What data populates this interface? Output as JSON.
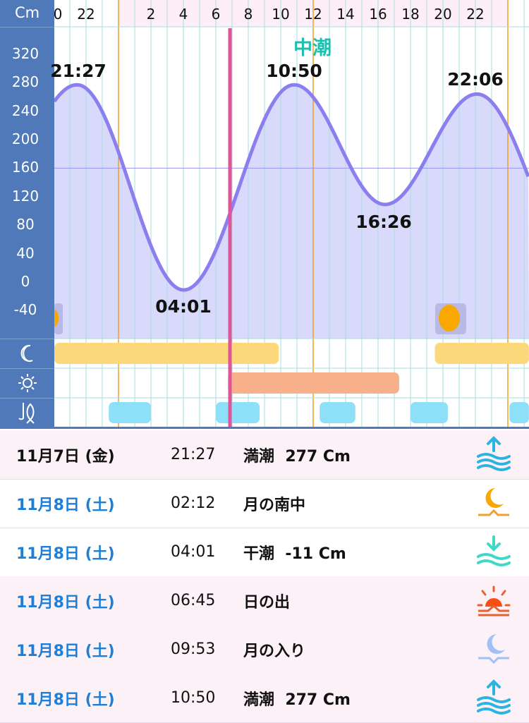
{
  "axis": {
    "unit": "Cm",
    "y_ticks": [
      "320",
      "280",
      "240",
      "200",
      "160",
      "120",
      "80",
      "40",
      "0",
      "-40"
    ],
    "row_icons": [
      "moon-icon",
      "sun-icon",
      "fishing-icon"
    ]
  },
  "hour_labels": [
    {
      "h": -4,
      "label": "0"
    },
    {
      "h": -2,
      "label": "22"
    },
    {
      "h": 2,
      "label": "2"
    },
    {
      "h": 4,
      "label": "4"
    },
    {
      "h": 6,
      "label": "6"
    },
    {
      "h": 8,
      "label": "8"
    },
    {
      "h": 10,
      "label": "10"
    },
    {
      "h": 12,
      "label": "12"
    },
    {
      "h": 14,
      "label": "14"
    },
    {
      "h": 16,
      "label": "16"
    },
    {
      "h": 18,
      "label": "18"
    },
    {
      "h": 20,
      "label": "20"
    },
    {
      "h": 22,
      "label": "22"
    }
  ],
  "tide_type": "中潮",
  "colors": {
    "axis": "#4f79b8",
    "curve": "#8b7ff0",
    "fill": "#d9d9fb",
    "now": "#e0559a",
    "moon_bar": "#fbd97a",
    "sun_bar": "#f8b08a",
    "fish_bar": "#8ee0f8",
    "day_line": "#f0a020",
    "date_blue": "#1d7fd8"
  },
  "chart_data": {
    "type": "line",
    "ylabel": "Cm",
    "ylim": [
      -60,
      340
    ],
    "x_unit": "hour of day (11月8日)",
    "extremes": [
      {
        "time": "21:27",
        "h": -2.55,
        "value": 277,
        "label": "21:27"
      },
      {
        "time": "04:01",
        "h": 4.02,
        "value": -11,
        "label": "04:01"
      },
      {
        "time": "10:50",
        "h": 10.83,
        "value": 277,
        "label": "10:50"
      },
      {
        "time": "16:26",
        "h": 16.43,
        "value": 109,
        "label": "16:26"
      },
      {
        "time": "22:06",
        "h": 22.1,
        "value": 264,
        "label": "22:06"
      }
    ],
    "current_time_h": 6.87,
    "moon_up": [
      [
        -4,
        9.88
      ],
      [
        19.5,
        25.3
      ]
    ],
    "sun_up": [
      [
        6.75,
        17.3
      ]
    ],
    "fishing_times": [
      [
        -0.6,
        2.0
      ],
      [
        6.0,
        8.7
      ],
      [
        12.4,
        14.6
      ],
      [
        18.0,
        20.3
      ],
      [
        24.1,
        25.3
      ]
    ]
  },
  "events": [
    {
      "date": "11月7日 (金)",
      "time": "21:27",
      "event": "満潮  277 Cm",
      "icon": "high-tide-icon",
      "today": false
    },
    {
      "date": "11月8日 (土)",
      "time": "02:12",
      "event": "月の南中",
      "icon": "moon-transit-icon",
      "today": true
    },
    {
      "date": "11月8日 (土)",
      "time": "04:01",
      "event": "干潮  -11 Cm",
      "icon": "low-tide-icon",
      "today": true
    },
    {
      "date": "11月8日 (土)",
      "time": "06:45",
      "event": "日の出",
      "icon": "sunrise-icon",
      "today": true
    },
    {
      "date": "11月8日 (土)",
      "time": "09:53",
      "event": "月の入り",
      "icon": "moonset-icon",
      "today": true
    },
    {
      "date": "11月8日 (土)",
      "time": "10:50",
      "event": "満潮  277 Cm",
      "icon": "high-tide-icon",
      "today": true
    }
  ]
}
